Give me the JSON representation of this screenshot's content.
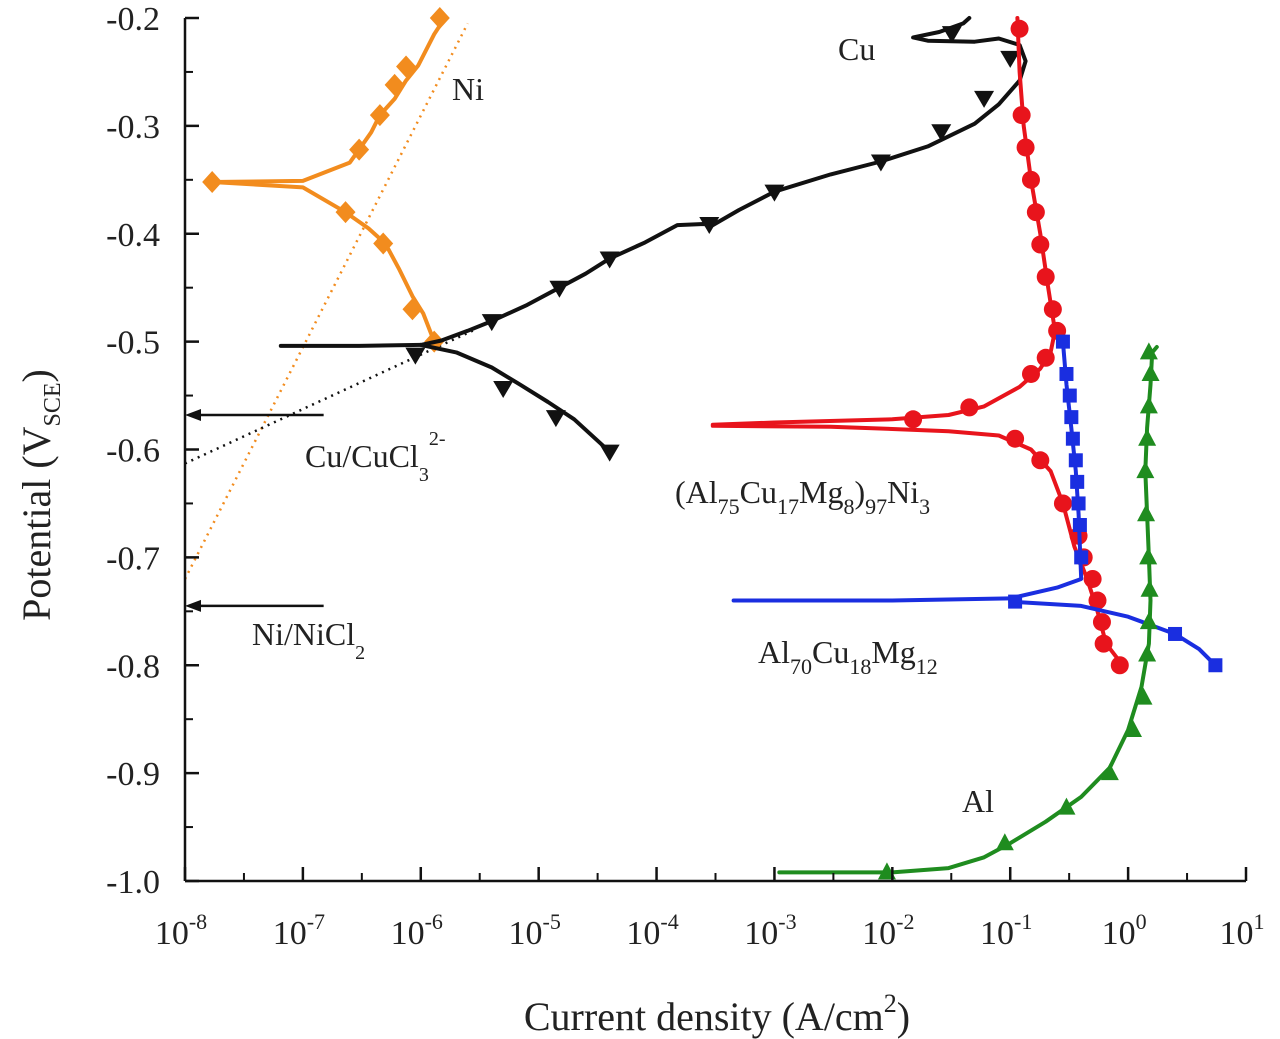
{
  "chart_data": {
    "type": "line",
    "xlabel": "Current density (A/cm",
    "xlabel_sup": "2",
    "xlabel_end": ")",
    "ylabel": "Potential (V",
    "ylabel_sub": "SCE",
    "ylabel_end": ")",
    "x_scale": "log",
    "xlim": [
      1e-08,
      10
    ],
    "ylim": [
      -1.0,
      -0.2
    ],
    "x_ticks": [
      {
        "value": 1e-08,
        "base": "10",
        "exp": "-8"
      },
      {
        "value": 1e-07,
        "base": "10",
        "exp": "-7"
      },
      {
        "value": 1e-06,
        "base": "10",
        "exp": "-6"
      },
      {
        "value": 1e-05,
        "base": "10",
        "exp": "-5"
      },
      {
        "value": 0.0001,
        "base": "10",
        "exp": "-4"
      },
      {
        "value": 0.001,
        "base": "10",
        "exp": "-3"
      },
      {
        "value": 0.01,
        "base": "10",
        "exp": "-2"
      },
      {
        "value": 0.1,
        "base": "10",
        "exp": "-1"
      },
      {
        "value": 1,
        "base": "10",
        "exp": "0"
      },
      {
        "value": 10,
        "base": "10",
        "exp": "1"
      }
    ],
    "y_ticks": [
      {
        "value": -0.2,
        "label": "-0.2"
      },
      {
        "value": -0.3,
        "label": "-0.3"
      },
      {
        "value": -0.4,
        "label": "-0.4"
      },
      {
        "value": -0.5,
        "label": "-0.5"
      },
      {
        "value": -0.6,
        "label": "-0.6"
      },
      {
        "value": -0.7,
        "label": "-0.7"
      },
      {
        "value": -0.8,
        "label": "-0.8"
      },
      {
        "value": -0.9,
        "label": "-0.9"
      },
      {
        "value": -1.0,
        "label": "-1.0"
      }
    ],
    "series": [
      {
        "key": "ni",
        "color": "#f28c1e",
        "marker": "diamond",
        "points": [
          [
            1.7e-08,
            -0.352
          ],
          [
            1e-07,
            -0.351
          ],
          [
            2.5e-07,
            -0.334
          ],
          [
            3e-07,
            -0.322
          ],
          [
            3.8e-07,
            -0.306
          ],
          [
            4.5e-07,
            -0.29
          ],
          [
            6e-07,
            -0.275
          ],
          [
            7.5e-07,
            -0.258
          ],
          [
            9.5e-07,
            -0.244
          ],
          [
            1.3e-06,
            -0.215
          ],
          [
            1.6e-06,
            -0.2
          ]
        ],
        "points2": [
          [
            1.7e-08,
            -0.352
          ],
          [
            1e-07,
            -0.357
          ],
          [
            2.3e-07,
            -0.38
          ],
          [
            3.6e-07,
            -0.395
          ],
          [
            5e-07,
            -0.409
          ],
          [
            6.5e-07,
            -0.432
          ],
          [
            8.5e-07,
            -0.458
          ],
          [
            1.05e-06,
            -0.474
          ],
          [
            1.3e-06,
            -0.5
          ]
        ],
        "marker_points": [
          [
            1.7e-08,
            -0.352
          ],
          [
            2.3e-07,
            -0.38
          ],
          [
            3e-07,
            -0.322
          ],
          [
            4.5e-07,
            -0.29
          ],
          [
            6e-07,
            -0.262
          ],
          [
            7.5e-07,
            -0.245
          ],
          [
            4.8e-07,
            -0.409
          ],
          [
            8.5e-07,
            -0.47
          ],
          [
            1.3e-06,
            -0.5
          ],
          [
            1.45e-06,
            -0.2
          ]
        ]
      },
      {
        "key": "cu",
        "color": "#111111",
        "marker": "triangle-down",
        "points": [
          [
            6.5e-08,
            -0.504
          ],
          [
            3e-07,
            -0.504
          ],
          [
            1e-06,
            -0.503
          ],
          [
            1.5e-06,
            -0.499
          ],
          [
            2.5e-06,
            -0.49
          ],
          [
            4e-06,
            -0.481
          ],
          [
            8e-06,
            -0.466
          ],
          [
            1.5e-05,
            -0.45
          ],
          [
            2.5e-05,
            -0.437
          ],
          [
            4e-05,
            -0.423
          ],
          [
            8e-05,
            -0.408
          ],
          [
            0.00015,
            -0.392
          ],
          [
            0.00025,
            -0.391
          ],
          [
            0.0003,
            -0.392
          ],
          [
            0.0005,
            -0.378
          ],
          [
            0.001,
            -0.361
          ],
          [
            0.003,
            -0.345
          ],
          [
            0.008,
            -0.333
          ],
          [
            0.02,
            -0.319
          ],
          [
            0.05,
            -0.298
          ],
          [
            0.08,
            -0.28
          ],
          [
            0.12,
            -0.258
          ],
          [
            0.135,
            -0.24
          ],
          [
            0.12,
            -0.225
          ],
          [
            0.08,
            -0.219
          ],
          [
            0.05,
            -0.222
          ],
          [
            0.02,
            -0.221
          ],
          [
            0.015,
            -0.218
          ],
          [
            0.025,
            -0.213
          ],
          [
            0.04,
            -0.205
          ],
          [
            0.045,
            -0.2
          ]
        ],
        "points2": [
          [
            1e-06,
            -0.503
          ],
          [
            2e-06,
            -0.51
          ],
          [
            4e-06,
            -0.524
          ],
          [
            7e-06,
            -0.54
          ],
          [
            1.2e-05,
            -0.556
          ],
          [
            2e-05,
            -0.572
          ],
          [
            4e-05,
            -0.602
          ]
        ],
        "marker_points": [
          [
            4e-06,
            -0.481
          ],
          [
            1.5e-05,
            -0.45
          ],
          [
            4e-05,
            -0.423
          ],
          [
            0.00028,
            -0.391
          ],
          [
            0.001,
            -0.361
          ],
          [
            0.008,
            -0.333
          ],
          [
            0.026,
            -0.305
          ],
          [
            0.06,
            -0.274
          ],
          [
            0.1,
            -0.237
          ],
          [
            0.032,
            -0.214
          ],
          [
            9e-07,
            -0.512
          ],
          [
            5e-06,
            -0.543
          ],
          [
            1.4e-05,
            -0.57
          ],
          [
            4e-05,
            -0.602
          ]
        ]
      },
      {
        "key": "alcumgni",
        "color": "#e8141c",
        "marker": "circle",
        "points": [
          [
            0.115,
            -0.2
          ],
          [
            0.12,
            -0.25
          ],
          [
            0.13,
            -0.3
          ],
          [
            0.15,
            -0.35
          ],
          [
            0.18,
            -0.4
          ],
          [
            0.21,
            -0.45
          ],
          [
            0.24,
            -0.49
          ],
          [
            0.22,
            -0.51
          ],
          [
            0.18,
            -0.525
          ],
          [
            0.12,
            -0.542
          ],
          [
            0.06,
            -0.56
          ],
          [
            0.03,
            -0.568
          ],
          [
            0.01,
            -0.572
          ],
          [
            0.001,
            -0.575
          ],
          [
            0.0003,
            -0.577
          ]
        ],
        "points2": [
          [
            0.0003,
            -0.578
          ],
          [
            0.003,
            -0.579
          ],
          [
            0.01,
            -0.581
          ],
          [
            0.03,
            -0.583
          ],
          [
            0.08,
            -0.587
          ],
          [
            0.15,
            -0.6
          ],
          [
            0.22,
            -0.62
          ],
          [
            0.28,
            -0.65
          ],
          [
            0.35,
            -0.69
          ],
          [
            0.45,
            -0.72
          ],
          [
            0.55,
            -0.75
          ],
          [
            0.65,
            -0.78
          ],
          [
            0.9,
            -0.8
          ]
        ],
        "marker_points": [
          [
            0.12,
            -0.21
          ],
          [
            0.125,
            -0.29
          ],
          [
            0.135,
            -0.32
          ],
          [
            0.15,
            -0.35
          ],
          [
            0.165,
            -0.38
          ],
          [
            0.18,
            -0.41
          ],
          [
            0.2,
            -0.44
          ],
          [
            0.23,
            -0.47
          ],
          [
            0.25,
            -0.49
          ],
          [
            0.2,
            -0.515
          ],
          [
            0.15,
            -0.53
          ],
          [
            0.045,
            -0.561
          ],
          [
            0.015,
            -0.572
          ],
          [
            0.11,
            -0.59
          ],
          [
            0.18,
            -0.61
          ],
          [
            0.28,
            -0.65
          ],
          [
            0.38,
            -0.68
          ],
          [
            0.42,
            -0.7
          ],
          [
            0.5,
            -0.72
          ],
          [
            0.55,
            -0.74
          ],
          [
            0.6,
            -0.76
          ],
          [
            0.62,
            -0.78
          ],
          [
            0.85,
            -0.8
          ]
        ]
      },
      {
        "key": "alcumg",
        "color": "#1a2ee0",
        "marker": "square",
        "points": [
          [
            0.28,
            -0.5
          ],
          [
            0.3,
            -0.54
          ],
          [
            0.33,
            -0.58
          ],
          [
            0.36,
            -0.62
          ],
          [
            0.38,
            -0.66
          ],
          [
            0.39,
            -0.69
          ],
          [
            0.4,
            -0.72
          ],
          [
            0.25,
            -0.728
          ],
          [
            0.1,
            -0.738
          ],
          [
            0.01,
            -0.74
          ],
          [
            0.00045,
            -0.74
          ]
        ],
        "points2": [
          [
            0.1,
            -0.741
          ],
          [
            0.4,
            -0.745
          ],
          [
            1.0,
            -0.755
          ],
          [
            2.5,
            -0.771
          ],
          [
            4.0,
            -0.785
          ],
          [
            5.5,
            -0.8
          ]
        ],
        "marker_points": [
          [
            0.28,
            -0.5
          ],
          [
            0.3,
            -0.53
          ],
          [
            0.32,
            -0.55
          ],
          [
            0.33,
            -0.57
          ],
          [
            0.34,
            -0.59
          ],
          [
            0.36,
            -0.61
          ],
          [
            0.37,
            -0.63
          ],
          [
            0.38,
            -0.65
          ],
          [
            0.39,
            -0.67
          ],
          [
            0.4,
            -0.7
          ],
          [
            0.11,
            -0.741
          ],
          [
            2.5,
            -0.771
          ],
          [
            5.5,
            -0.8
          ]
        ]
      },
      {
        "key": "al",
        "color": "#1f8c1f",
        "marker": "triangle-up",
        "points": [
          [
            0.0011,
            -0.992
          ],
          [
            0.01,
            -0.992
          ],
          [
            0.03,
            -0.988
          ],
          [
            0.06,
            -0.978
          ],
          [
            0.1,
            -0.965
          ],
          [
            0.2,
            -0.945
          ],
          [
            0.4,
            -0.922
          ],
          [
            0.7,
            -0.895
          ],
          [
            1.0,
            -0.86
          ],
          [
            1.3,
            -0.82
          ],
          [
            1.5,
            -0.78
          ],
          [
            1.55,
            -0.74
          ],
          [
            1.5,
            -0.7
          ],
          [
            1.45,
            -0.66
          ],
          [
            1.4,
            -0.62
          ],
          [
            1.45,
            -0.58
          ],
          [
            1.55,
            -0.54
          ],
          [
            1.6,
            -0.51
          ],
          [
            1.75,
            -0.505
          ]
        ],
        "marker_points": [
          [
            0.009,
            -0.992
          ],
          [
            0.09,
            -0.965
          ],
          [
            0.3,
            -0.932
          ],
          [
            0.7,
            -0.9
          ],
          [
            1.1,
            -0.86
          ],
          [
            1.35,
            -0.83
          ],
          [
            1.45,
            -0.79
          ],
          [
            1.5,
            -0.76
          ],
          [
            1.52,
            -0.73
          ],
          [
            1.48,
            -0.7
          ],
          [
            1.42,
            -0.66
          ],
          [
            1.4,
            -0.62
          ],
          [
            1.45,
            -0.59
          ],
          [
            1.5,
            -0.56
          ],
          [
            1.55,
            -0.53
          ],
          [
            1.5,
            -0.51
          ]
        ]
      }
    ],
    "tafel_lines": [
      {
        "key": "ni-tafel",
        "color": "#f28c1e",
        "points": [
          [
            1e-08,
            -0.72
          ],
          [
            2.5e-06,
            -0.205
          ]
        ]
      },
      {
        "key": "cu-tafel",
        "color": "#111111",
        "points": [
          [
            1e-08,
            -0.613
          ],
          [
            3e-06,
            -0.488
          ]
        ]
      }
    ],
    "reference_arrows": [
      {
        "key": "cu-cucl3",
        "y": -0.568,
        "x_from": 1.5e-07,
        "x_to": 1e-08
      },
      {
        "key": "ni-nicl2",
        "y": -0.745,
        "x_from": 1.5e-07,
        "x_to": 1e-08
      }
    ],
    "annotations": {
      "ni": {
        "text": "Ni"
      },
      "cu": {
        "text": "Cu"
      },
      "cu_cucl3": {
        "a": "Cu/CuCl",
        "b": "3",
        "c": "2-"
      },
      "alloy1": {
        "p1": "(Al",
        "s1": "75",
        "p2": "Cu",
        "s2": "17",
        "p3": "Mg",
        "s3": "8",
        "p4": ")",
        "s4": "97",
        "p5": "Ni",
        "s5": "3"
      },
      "ni_nicl2": {
        "a": "Ni/NiCl",
        "b": "2"
      },
      "alloy2": {
        "p1": "Al",
        "s1": "70",
        "p2": "Cu",
        "s2": "18",
        "p3": "Mg",
        "s3": "12"
      },
      "al": {
        "text": "Al"
      }
    }
  }
}
